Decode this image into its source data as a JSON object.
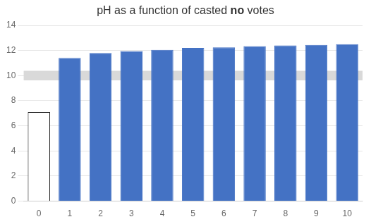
{
  "chart_data": {
    "type": "bar",
    "title": "pH as a function of casted no votes",
    "title_bold": "no",
    "categories": [
      "0",
      "1",
      "2",
      "3",
      "4",
      "5",
      "6",
      "7",
      "8",
      "9",
      "10"
    ],
    "values": [
      7.1,
      11.4,
      11.8,
      11.95,
      12.05,
      12.2,
      12.25,
      12.35,
      12.4,
      12.45,
      12.5
    ],
    "colors": [
      "#ffffff",
      "#4472C4",
      "#4472C4",
      "#4472C4",
      "#4472C4",
      "#4472C4",
      "#4472C4",
      "#4472C4",
      "#4472C4",
      "#4472C4",
      "#4472C4"
    ],
    "edge_colors": [
      "#000000",
      "#4472C4",
      "#4472C4",
      "#4472C4",
      "#4472C4",
      "#4472C4",
      "#4472C4",
      "#4472C4",
      "#4472C4",
      "#4472C4",
      "#4472C4"
    ],
    "band": {
      "low": 9.62,
      "high": 10.38,
      "color": "#d9d9d9"
    },
    "ylim": [
      0,
      14
    ],
    "yticks": [
      0,
      2,
      4,
      6,
      8,
      10,
      12,
      14
    ],
    "grid": true
  }
}
